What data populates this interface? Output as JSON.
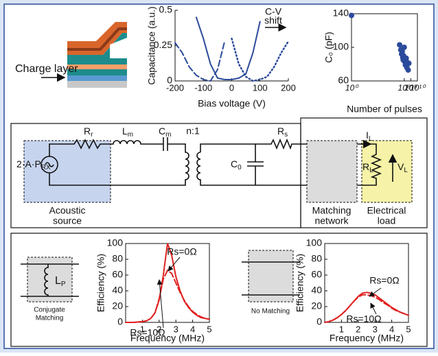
{
  "labels": {
    "charge_layer": "Charge layer"
  },
  "circuit": {
    "source": {
      "main": "2·A·P",
      "sub": "RX"
    },
    "Rr": {
      "main": "R",
      "sub": "r"
    },
    "Lm": {
      "main": "L",
      "sub": "m"
    },
    "Cm": {
      "main": "C",
      "sub": "m"
    },
    "ratio": "n:1",
    "C0": {
      "main": "C",
      "sub": "0"
    },
    "Rs": {
      "main": "R",
      "sub": "s"
    },
    "IL": {
      "main": "I",
      "sub": "L"
    },
    "RL": {
      "main": "R",
      "sub": "L"
    },
    "VL": {
      "main": "V",
      "sub": "L"
    }
  },
  "blocks": {
    "acoustic": [
      "Acoustic",
      "source"
    ],
    "matching": [
      "Matching",
      "network"
    ],
    "load": [
      "Electrical",
      "load"
    ]
  },
  "bottom": {
    "Lp": {
      "main": "L",
      "sub": "P"
    },
    "conjugate": [
      "Conjugate",
      "Matching"
    ],
    "no_matching": "No Matching"
  },
  "chart_data": [
    {
      "type": "line",
      "annotation": [
        "C-V",
        "shift"
      ],
      "xlabel": "Bias voltage (V)",
      "ylabel": "Capacitance (a.u.)",
      "x": [
        -200,
        -175,
        -150,
        -125,
        -100,
        -75,
        -50,
        -25,
        0,
        25,
        50,
        75,
        100,
        125,
        150,
        175,
        200
      ],
      "xlim": [
        -200,
        200
      ],
      "xticks": [
        -200,
        -100,
        0,
        100,
        200
      ],
      "ylim": [
        0,
        0.5
      ],
      "yticks": [
        0,
        0.25,
        0.5
      ],
      "grid": false,
      "series": [
        {
          "color": "#2b4a9b",
          "dash": "dashed",
          "values": [
            0.27,
            0.2,
            0.1,
            0.04,
            0.01,
            0.0,
            0.08,
            0.28,
            null,
            null,
            null,
            null,
            null,
            null,
            null,
            null,
            null
          ]
        },
        {
          "color": "#2b4a9b",
          "dash": "solid",
          "values": [
            null,
            null,
            null,
            0.45,
            0.3,
            0.12,
            0.02,
            0.01,
            0.01,
            0.02,
            0.05,
            0.2,
            0.42,
            null,
            null,
            null,
            null
          ]
        },
        {
          "color": "#2b4a9b",
          "dash": "dotted",
          "values": [
            null,
            null,
            null,
            null,
            null,
            null,
            null,
            null,
            0.3,
            0.12,
            0.03,
            0.0,
            0.01,
            0.03,
            0.1,
            0.2,
            0.28
          ]
        }
      ]
    },
    {
      "type": "scatter",
      "xlabel": "Number of pulses",
      "ylabel": "C₀ (pF)",
      "xscale": "log",
      "x": [
        1,
        20000000.0,
        30000000.0,
        40000000.0,
        50000000.0,
        60000000.0,
        70000000.0,
        80000000.0,
        100000000.0,
        120000000.0,
        150000000.0,
        200000000.0,
        250000000.0,
        300000000.0,
        400000000.0,
        500000000.0
      ],
      "values": [
        138,
        103,
        97,
        92,
        95,
        88,
        85,
        90,
        100,
        83,
        79,
        87,
        76,
        82,
        73,
        81
      ],
      "color": "#2b4a9b",
      "xlim": [
        1,
        10000000000.0
      ],
      "xticks": [
        {
          "value": 1,
          "label": "10⁰"
        },
        {
          "value": 100000000.0,
          "label": "10⁸"
        },
        {
          "value": 1000000000.0,
          "label": "10⁹"
        },
        {
          "value": 10000000000.0,
          "label": "10¹⁰"
        }
      ],
      "ylim": [
        60,
        140
      ],
      "yticks": [
        60,
        100,
        140
      ],
      "grid": false
    },
    {
      "type": "line",
      "xlabel": "Frequency (MHz)",
      "ylabel": "Efficiency (%)",
      "x": [
        0,
        0.25,
        0.5,
        0.75,
        1,
        1.25,
        1.5,
        1.75,
        2,
        2.25,
        2.5,
        2.75,
        3,
        3.25,
        3.5,
        3.75,
        4,
        4.25,
        4.5,
        4.75,
        5
      ],
      "xlim": [
        0,
        5
      ],
      "xticks": [
        1,
        2,
        3,
        4,
        5
      ],
      "ylim": [
        0,
        100
      ],
      "yticks": [
        0,
        20,
        40,
        60,
        80,
        100
      ],
      "grid": false,
      "series": [
        {
          "name": "Rs=0Ω",
          "color": "#e02020",
          "dash": "solid",
          "values": [
            0,
            0,
            0,
            0.5,
            1,
            2,
            5,
            12,
            28,
            60,
            100,
            85,
            58,
            40,
            27,
            19,
            13,
            9,
            6,
            5,
            4
          ]
        },
        {
          "name": "Rs=10Ω",
          "color": "#e02020",
          "dash": "dashed",
          "values": [
            0,
            0,
            0,
            0.5,
            1,
            2,
            5,
            12,
            30,
            55,
            66,
            62,
            50,
            38,
            28,
            20,
            14,
            10,
            7,
            5,
            4
          ]
        }
      ]
    },
    {
      "type": "line",
      "xlabel": "Frequency (MHz)",
      "ylabel": "Efficiency (%)",
      "x": [
        0,
        0.25,
        0.5,
        0.75,
        1,
        1.25,
        1.5,
        1.75,
        2,
        2.25,
        2.5,
        2.75,
        3,
        3.25,
        3.5,
        3.75,
        4,
        4.25,
        4.5,
        4.75,
        5
      ],
      "xlim": [
        0,
        5
      ],
      "xticks": [
        1,
        2,
        3,
        4,
        5
      ],
      "ylim": [
        0,
        100
      ],
      "yticks": [
        0,
        20,
        40,
        60,
        80,
        100
      ],
      "grid": false,
      "series": [
        {
          "name": "Rs=0Ω",
          "color": "#e02020",
          "dash": "solid",
          "values": [
            0,
            1,
            3,
            6,
            10,
            15,
            21,
            27,
            33,
            37,
            38,
            37,
            35,
            31,
            27,
            23,
            19,
            16,
            13,
            11,
            9
          ]
        },
        {
          "name": "Rs=10Ω",
          "color": "#e02020",
          "dash": "dashed",
          "values": [
            0,
            1,
            3,
            6,
            10,
            15,
            21,
            27,
            32,
            35,
            35,
            34,
            32,
            29,
            25,
            22,
            18,
            15,
            13,
            11,
            9
          ]
        }
      ]
    }
  ]
}
